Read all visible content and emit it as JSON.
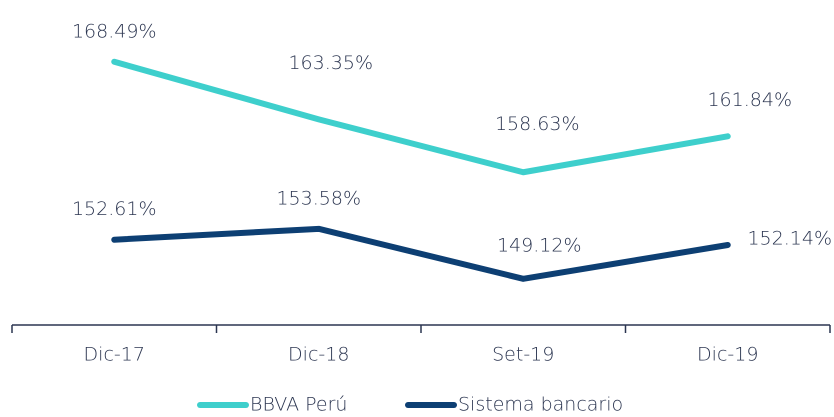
{
  "chart_data": {
    "type": "line",
    "categories": [
      "Dic-17",
      "Dic-18",
      "Set-19",
      "Dic-19"
    ],
    "series": [
      {
        "name": "BBVA Perú",
        "color": "#3ecfcc",
        "values": [
          168.49,
          163.35,
          158.63,
          161.84
        ],
        "value_labels": [
          "168.49%",
          "163.35%",
          "158.63%",
          "161.84%"
        ]
      },
      {
        "name": "Sistema bancario",
        "color": "#0d3f73",
        "values": [
          152.61,
          153.58,
          149.12,
          152.14
        ],
        "value_labels": [
          "152.61%",
          "153.58%",
          "149.12%",
          "152.14%"
        ]
      }
    ],
    "ylim": [
      145,
      174
    ]
  }
}
